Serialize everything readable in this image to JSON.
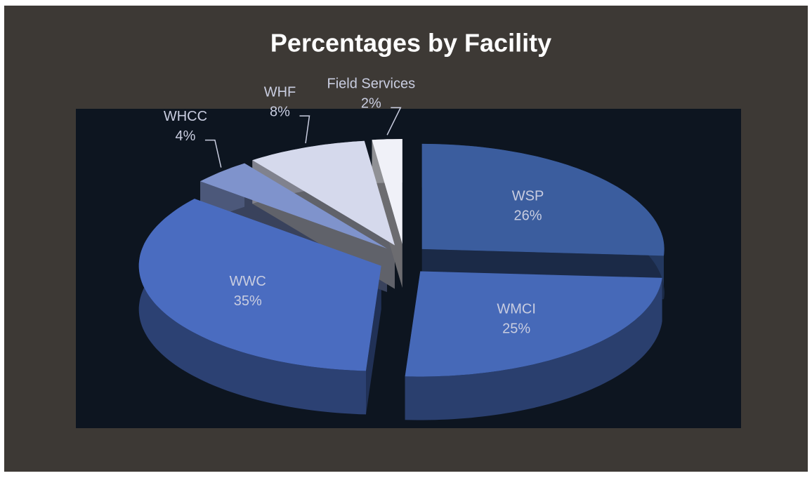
{
  "chart_data": {
    "type": "pie",
    "title": "Percentages by Facility",
    "categories": [
      "WSP",
      "WMCI",
      "WWC",
      "WHCC",
      "WHF",
      "Field Services"
    ],
    "values": [
      26,
      25,
      35,
      4,
      8,
      2
    ],
    "value_labels": [
      "26%",
      "25%",
      "35%",
      "4%",
      "8%",
      "2%"
    ],
    "colors": [
      "#3b5d9e",
      "#4669b8",
      "#4a6cc0",
      "#7f93cc",
      "#d5d9ec",
      "#f0f1f8"
    ]
  }
}
